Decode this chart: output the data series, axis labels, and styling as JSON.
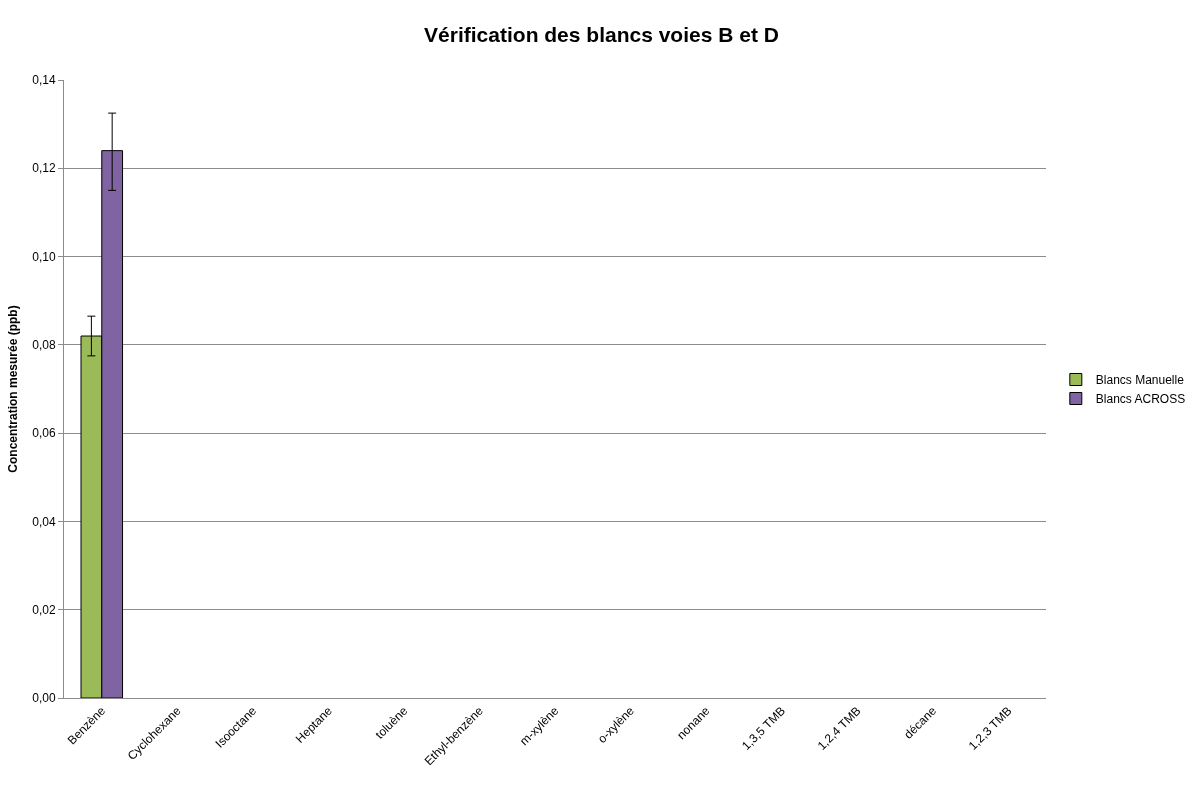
{
  "chart_data": {
    "type": "bar",
    "title": "Vérification des blancs voies B et D",
    "ylabel": "Concentration mesurée (ppb)",
    "categories": [
      "Benzène",
      "Cyclohexane",
      "Isooctane",
      "Heptane",
      "toluène",
      "Ethyl-benzène",
      "m-xylène",
      "o-xylène",
      "nonane",
      "1,3,5 TMB",
      "1,2,4 TMB",
      "décane",
      "1,2,3 TMB"
    ],
    "series": [
      {
        "name": "Blancs Manuelle",
        "color": "#9bbb59",
        "values": [
          0.082,
          null,
          null,
          null,
          null,
          null,
          null,
          null,
          null,
          null,
          null,
          null,
          null
        ],
        "errors": [
          [
            0.0775,
            0.0865
          ],
          null,
          null,
          null,
          null,
          null,
          null,
          null,
          null,
          null,
          null,
          null,
          null
        ]
      },
      {
        "name": "Blancs ACROSS",
        "color": "#8064a2",
        "values": [
          0.124,
          null,
          null,
          null,
          null,
          null,
          null,
          null,
          null,
          null,
          null,
          null,
          null
        ],
        "errors": [
          [
            0.115,
            0.1325
          ],
          null,
          null,
          null,
          null,
          null,
          null,
          null,
          null,
          null,
          null,
          null,
          null
        ]
      }
    ],
    "ylim": [
      0,
      0.14
    ],
    "yticks": [
      {
        "value": 0,
        "label": "0,00"
      },
      {
        "value": 0.02,
        "label": "0,02"
      },
      {
        "value": 0.04,
        "label": "0,04"
      },
      {
        "value": 0.06,
        "label": "0,06"
      },
      {
        "value": 0.08,
        "label": "0,08"
      },
      {
        "value": 0.1,
        "label": "0,10"
      },
      {
        "value": 0.12,
        "label": "0,12"
      },
      {
        "value": 0.14,
        "label": "0,14"
      }
    ],
    "grid": "y",
    "legend": "right"
  }
}
